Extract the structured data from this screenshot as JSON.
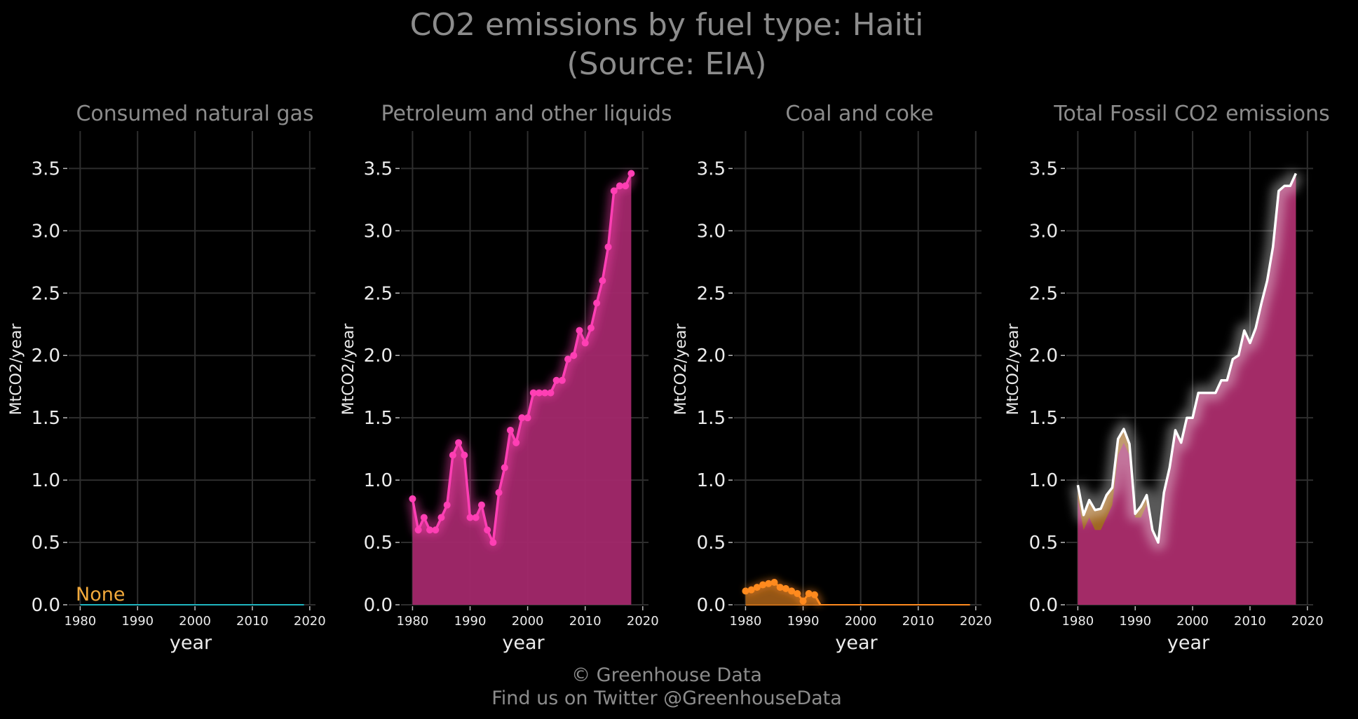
{
  "figure": {
    "title_line1": "CO2 emissions by fuel type: Haiti",
    "title_line2": "(Source: EIA)",
    "credit_line1": "© Greenhouse Data",
    "credit_line2": "Find us on Twitter @GreenhouseData"
  },
  "colors": {
    "background": "#000000",
    "title_gray": "#8c8c8c",
    "grid": "#2e2e2e",
    "gas": "#1fb5bf",
    "petroleum": "#ff3fb4",
    "petroleum_fill": "#a3286c",
    "coal": "#ff8a1e",
    "coal_fill": "#9c5a16",
    "total": "#ffffff",
    "annotation": "#f2a93b"
  },
  "chart_data": [
    {
      "type": "line",
      "title": "Consumed natural gas",
      "xlabel": "year",
      "ylabel": "MtCO2/year",
      "xlim": [
        1978,
        2021
      ],
      "ylim": [
        0,
        3.8
      ],
      "xticks": [
        1980,
        1990,
        2000,
        2010,
        2020
      ],
      "yticks": [
        0.0,
        0.5,
        1.0,
        1.5,
        2.0,
        2.5,
        3.0,
        3.5
      ],
      "grid": true,
      "annotation": "None",
      "series": [
        {
          "x": [
            1980,
            2019
          ],
          "values": [
            0,
            0
          ]
        }
      ]
    },
    {
      "type": "area",
      "title": "Petroleum and other liquids",
      "xlabel": "year",
      "ylabel": "MtCO2/year",
      "xlim": [
        1978,
        2021
      ],
      "ylim": [
        0,
        3.8
      ],
      "xticks": [
        1980,
        1990,
        2000,
        2010,
        2020
      ],
      "yticks": [
        0.0,
        0.5,
        1.0,
        1.5,
        2.0,
        2.5,
        3.0,
        3.5
      ],
      "grid": true,
      "series": [
        {
          "x": [
            1980,
            1981,
            1982,
            1983,
            1984,
            1985,
            1986,
            1987,
            1988,
            1989,
            1990,
            1991,
            1992,
            1993,
            1994,
            1995,
            1996,
            1997,
            1998,
            1999,
            2000,
            2001,
            2002,
            2003,
            2004,
            2005,
            2006,
            2007,
            2008,
            2009,
            2010,
            2011,
            2012,
            2013,
            2014,
            2015,
            2016,
            2017,
            2018
          ],
          "values": [
            0.85,
            0.6,
            0.7,
            0.6,
            0.6,
            0.7,
            0.8,
            1.2,
            1.3,
            1.2,
            0.7,
            0.7,
            0.8,
            0.6,
            0.5,
            0.9,
            1.1,
            1.4,
            1.3,
            1.5,
            1.5,
            1.7,
            1.7,
            1.7,
            1.7,
            1.8,
            1.8,
            1.97,
            2.0,
            2.2,
            2.1,
            2.22,
            2.42,
            2.6,
            2.87,
            3.32,
            3.36,
            3.36,
            3.46
          ]
        }
      ]
    },
    {
      "type": "area",
      "title": "Coal and coke",
      "xlabel": "year",
      "ylabel": "MtCO2/year",
      "xlim": [
        1978,
        2021
      ],
      "ylim": [
        0,
        3.8
      ],
      "xticks": [
        1980,
        1990,
        2000,
        2010,
        2020
      ],
      "yticks": [
        0.0,
        0.5,
        1.0,
        1.5,
        2.0,
        2.5,
        3.0,
        3.5
      ],
      "grid": true,
      "series": [
        {
          "x": [
            1980,
            1981,
            1982,
            1983,
            1984,
            1985,
            1986,
            1987,
            1988,
            1989,
            1990,
            1991,
            1992,
            1993,
            2019
          ],
          "values": [
            0.11,
            0.12,
            0.14,
            0.16,
            0.17,
            0.18,
            0.14,
            0.13,
            0.11,
            0.09,
            0.03,
            0.09,
            0.08,
            0.0,
            0.0
          ]
        }
      ]
    },
    {
      "type": "area",
      "title": "Total Fossil CO2 emissions",
      "xlabel": "year",
      "ylabel": "MtCO2/year",
      "xlim": [
        1978,
        2021
      ],
      "ylim": [
        0,
        3.8
      ],
      "xticks": [
        1980,
        1990,
        2000,
        2010,
        2020
      ],
      "yticks": [
        0.0,
        0.5,
        1.0,
        1.5,
        2.0,
        2.5,
        3.0,
        3.5
      ],
      "grid": true,
      "series": [
        {
          "x": [
            1980,
            1981,
            1982,
            1983,
            1984,
            1985,
            1986,
            1987,
            1988,
            1989,
            1990,
            1991,
            1992,
            1993,
            1994,
            1995,
            1996,
            1997,
            1998,
            1999,
            2000,
            2001,
            2002,
            2003,
            2004,
            2005,
            2006,
            2007,
            2008,
            2009,
            2010,
            2011,
            2012,
            2013,
            2014,
            2015,
            2016,
            2017,
            2018
          ],
          "values": [
            0.96,
            0.72,
            0.84,
            0.76,
            0.77,
            0.88,
            0.94,
            1.33,
            1.41,
            1.29,
            0.73,
            0.79,
            0.88,
            0.6,
            0.5,
            0.9,
            1.1,
            1.4,
            1.3,
            1.5,
            1.5,
            1.7,
            1.7,
            1.7,
            1.7,
            1.8,
            1.8,
            1.97,
            2.0,
            2.2,
            2.1,
            2.22,
            2.42,
            2.6,
            2.87,
            3.32,
            3.36,
            3.36,
            3.46
          ]
        }
      ]
    }
  ]
}
